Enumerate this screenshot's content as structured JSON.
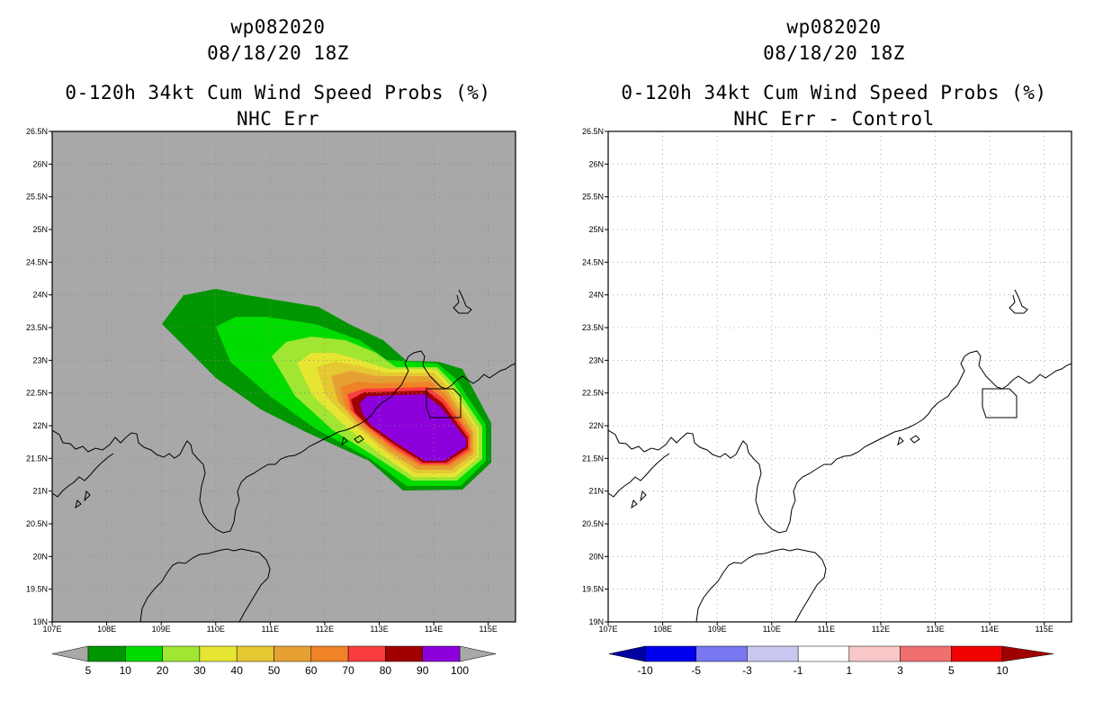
{
  "left_panel": {
    "title_storm": "wp082020",
    "title_date": "08/18/20 18Z",
    "title_product": "0-120h 34kt Cum Wind Speed Probs (%)",
    "title_subtitle": "NHC Err",
    "background_color": "#a8a8a8",
    "colorbar": {
      "colors": [
        "#009600",
        "#00dc00",
        "#a0e632",
        "#e6e632",
        "#e6c832",
        "#e6a032",
        "#f08228",
        "#fa3c3c",
        "#a00000",
        "#8c00dc"
      ],
      "labels": [
        "5",
        "10",
        "20",
        "30",
        "40",
        "50",
        "60",
        "70",
        "80",
        "90",
        "100"
      ]
    },
    "probability_contours": [
      {
        "level": "5",
        "color": "#009600"
      },
      {
        "level": "10",
        "color": "#00dc00"
      },
      {
        "level": "20",
        "color": "#a0e632"
      },
      {
        "level": "30",
        "color": "#e6e632"
      },
      {
        "level": "40",
        "color": "#e6c832"
      },
      {
        "level": "50",
        "color": "#e6a032"
      },
      {
        "level": "60",
        "color": "#f08228"
      },
      {
        "level": "70",
        "color": "#fa3c3c"
      },
      {
        "level": "80",
        "color": "#a00000"
      },
      {
        "level": "90",
        "color": "#8c00dc"
      }
    ]
  },
  "right_panel": {
    "title_storm": "wp082020",
    "title_date": "08/18/20 18Z",
    "title_product": "0-120h 34kt Cum Wind Speed Probs (%)",
    "title_subtitle": "NHC Err - Control",
    "background_color": "#ffffff",
    "colorbar": {
      "colors": [
        "#0000a0",
        "#0000f0",
        "#7878f0",
        "#c8c8f0",
        "#ffffff",
        "#f8c8c8",
        "#f07070",
        "#f00000",
        "#a00000"
      ],
      "labels": [
        "-10",
        "-5",
        "-3",
        "-1",
        "1",
        "3",
        "5",
        "10"
      ]
    }
  },
  "map": {
    "lat_labels": [
      "26.5N",
      "26N",
      "25.5N",
      "25N",
      "24.5N",
      "24N",
      "23.5N",
      "23N",
      "22.5N",
      "22N",
      "21.5N",
      "21N",
      "20.5N",
      "20N",
      "19.5N",
      "19N"
    ],
    "lon_labels": [
      "107E",
      "108E",
      "109E",
      "110E",
      "111E",
      "112E",
      "113E",
      "114E",
      "115E"
    ],
    "lat_values": [
      26.5,
      26,
      25.5,
      25,
      24.5,
      24,
      23.5,
      23,
      22.5,
      22,
      21.5,
      21,
      20.5,
      20,
      19.5,
      19
    ],
    "lon_values": [
      107,
      108,
      109,
      110,
      111,
      112,
      113,
      114,
      115
    ],
    "lat_range": [
      19,
      26.5
    ],
    "lon_range": [
      107,
      115.5
    ]
  }
}
